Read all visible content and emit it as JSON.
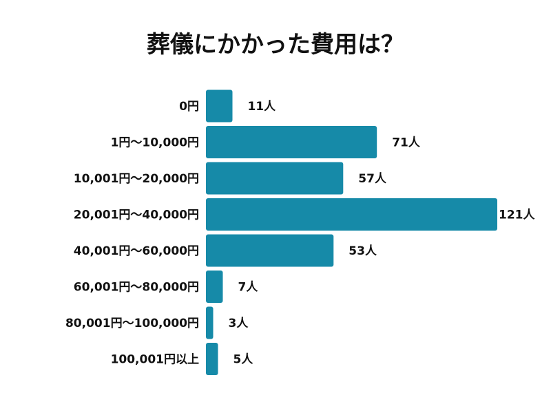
{
  "chart_data": {
    "type": "bar",
    "orientation": "horizontal",
    "title": "葬儀にかかった費用は？",
    "categories": [
      "0円",
      "1円〜10,000円",
      "10,001円〜20,000円",
      "20,001円〜40,000円",
      "40,001円〜60,000円",
      "60,001円〜80,000円",
      "80,001円〜100,000円",
      "100,001円以上"
    ],
    "values": [
      11,
      71,
      57,
      121,
      53,
      7,
      3,
      5
    ],
    "value_labels": [
      "11人",
      "71人",
      "57人",
      "121人",
      "53人",
      "7人",
      "3人",
      "5人"
    ],
    "bar_color": "#168aa8",
    "xlim": [
      0,
      121
    ],
    "grid": false,
    "legend": "none"
  }
}
